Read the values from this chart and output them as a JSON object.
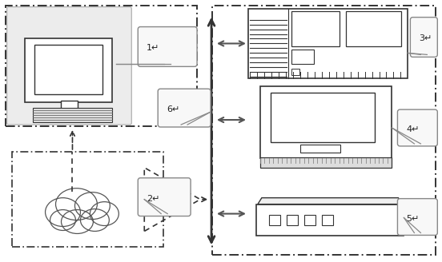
{
  "bg_color": "#ffffff",
  "fig_width": 5.52,
  "fig_height": 3.28,
  "dpi": 100,
  "line_color": "#333333",
  "light_gray": "#e0e0e0",
  "mid_gray": "#aaaaaa",
  "white": "#ffffff"
}
